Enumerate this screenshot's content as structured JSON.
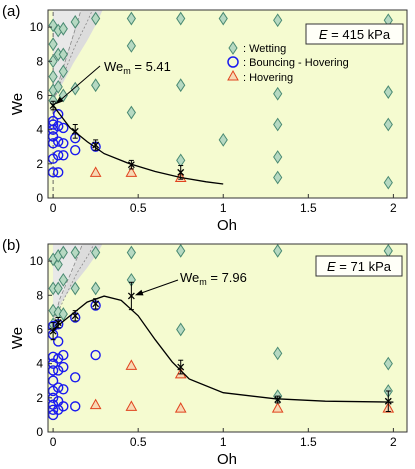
{
  "chart_data": [
    {
      "type": "scatter",
      "panel_label": "(a)",
      "xlabel": "Oh",
      "ylabel": "We",
      "xlim": [
        -0.03,
        2.08
      ],
      "ylim": [
        0,
        11
      ],
      "xticks": [
        0,
        0.5,
        1,
        1.5,
        2
      ],
      "xtick_labels": [
        "0",
        "0.5",
        "1",
        "1.5",
        "2"
      ],
      "yticks": [
        0,
        2,
        4,
        6,
        8,
        10
      ],
      "ytick_labels": [
        "0",
        "2",
        "4",
        "6",
        "8",
        "10"
      ],
      "box_label": "E = 415 kPa",
      "box_label_var": "E",
      "box_label_rest": " = 415 kPa",
      "annotation": {
        "text": "Wem = 5.41",
        "text_main": "We",
        "text_sub": "m",
        "text_rest": " = 5.41",
        "x": 0.005,
        "y": 5.41
      },
      "legend": {
        "placement": "top-right",
        "entries": [
          ": Wetting",
          ": Bouncing - Hovering",
          ": Hovering"
        ]
      },
      "series": [
        {
          "name": "Wetting",
          "marker": "diamond",
          "color": "#4a8a72",
          "x": [
            0.0,
            0.0,
            0.0,
            0.0,
            0.0,
            0.0,
            0.03,
            0.03,
            0.03,
            0.06,
            0.06,
            0.06,
            0.06,
            0.13,
            0.13,
            0.25,
            0.25,
            0.46,
            0.46,
            0.46,
            0.75,
            0.75,
            0.75,
            1.0,
            1.0,
            1.32,
            1.32,
            1.32,
            1.32,
            1.32,
            1.97,
            1.97,
            1.97,
            1.97
          ],
          "y": [
            5.7,
            6.3,
            7.1,
            8.0,
            9.0,
            10.1,
            6.5,
            8.4,
            9.8,
            6.0,
            7.4,
            8.4,
            9.9,
            6.4,
            10.3,
            6.6,
            10.5,
            5.0,
            8.9,
            10.5,
            2.2,
            6.6,
            10.5,
            3.4,
            10.5,
            1.2,
            2.4,
            4.3,
            6.1,
            10.4,
            0.9,
            4.3,
            6.2,
            10.4
          ]
        },
        {
          "name": "Bouncing - Hovering",
          "marker": "circle",
          "color": "#1a1aef",
          "x": [
            0.0,
            0.0,
            0.0,
            0.0,
            0.0,
            0.0,
            0.0,
            0.03,
            0.03,
            0.03,
            0.03,
            0.03,
            0.06,
            0.06,
            0.06,
            0.13,
            0.13,
            0.25
          ],
          "y": [
            1.5,
            2.3,
            3.2,
            3.6,
            4.0,
            4.3,
            4.5,
            1.5,
            2.5,
            3.3,
            4.2,
            4.9,
            2.5,
            3.2,
            4.1,
            2.8,
            3.5,
            3.0
          ]
        },
        {
          "name": "Hovering",
          "marker": "triangle",
          "color": "#e0431e",
          "x": [
            0.25,
            0.46,
            0.75
          ],
          "y": [
            1.5,
            1.5,
            1.2
          ]
        }
      ],
      "threshold_points": {
        "x": [
          0.0,
          0.13,
          0.25,
          0.46,
          0.75
        ],
        "y": [
          5.41,
          3.9,
          3.1,
          1.95,
          1.5
        ],
        "err": [
          0.25,
          0.4,
          0.3,
          0.25,
          0.4
        ]
      },
      "fit_curve": {
        "x": [
          0.0,
          0.1,
          0.2,
          0.3,
          0.45,
          0.6,
          0.75,
          0.9,
          1.0
        ],
        "y": [
          5.41,
          4.1,
          3.3,
          2.6,
          2.0,
          1.55,
          1.2,
          0.95,
          0.82
        ]
      }
    },
    {
      "type": "scatter",
      "panel_label": "(b)",
      "xlabel": "Oh",
      "ylabel": "We",
      "xlim": [
        -0.03,
        2.08
      ],
      "ylim": [
        0,
        11
      ],
      "xticks": [
        0,
        0.5,
        1,
        1.5,
        2
      ],
      "xtick_labels": [
        "0",
        "0.5",
        "1",
        "1.5",
        "2"
      ],
      "yticks": [
        0,
        2,
        4,
        6,
        8,
        10
      ],
      "ytick_labels": [
        "0",
        "2",
        "4",
        "6",
        "8",
        "10"
      ],
      "box_label": "E = 71 kPa",
      "box_label_var": "E",
      "box_label_rest": " = 71 kPa",
      "annotation": {
        "text": "Wem = 7.96",
        "text_main": "We",
        "text_sub": "m",
        "text_rest": " = 7.96",
        "x": 0.47,
        "y": 7.96
      },
      "series": [
        {
          "name": "Wetting",
          "marker": "diamond",
          "color": "#4a8a72",
          "x": [
            0.0,
            0.0,
            0.0,
            0.0,
            0.03,
            0.03,
            0.03,
            0.03,
            0.06,
            0.06,
            0.06,
            0.13,
            0.13,
            0.25,
            0.25,
            0.46,
            0.46,
            0.75,
            0.75,
            1.32,
            1.32,
            1.32,
            1.97,
            1.97,
            1.97
          ],
          "y": [
            6.3,
            7.1,
            8.4,
            10.1,
            7.0,
            8.4,
            9.8,
            10.3,
            6.9,
            8.9,
            10.5,
            8.4,
            10.5,
            8.4,
            10.5,
            8.9,
            10.5,
            6.0,
            10.6,
            2.1,
            4.6,
            10.6,
            2.4,
            4.0,
            10.6
          ]
        },
        {
          "name": "Bouncing - Hovering",
          "marker": "circle",
          "color": "#1a1aef",
          "x": [
            0.0,
            0.0,
            0.0,
            0.0,
            0.0,
            0.0,
            0.0,
            0.0,
            0.0,
            0.0,
            0.0,
            0.03,
            0.03,
            0.03,
            0.03,
            0.03,
            0.03,
            0.03,
            0.06,
            0.06,
            0.06,
            0.06,
            0.13,
            0.13,
            0.13,
            0.25,
            0.25
          ],
          "y": [
            1.0,
            1.3,
            1.6,
            2.0,
            2.4,
            3.0,
            3.6,
            4.0,
            4.4,
            5.7,
            6.2,
            1.3,
            1.8,
            2.6,
            3.6,
            4.3,
            5.3,
            6.3,
            1.5,
            2.5,
            3.8,
            4.5,
            1.5,
            3.2,
            6.7,
            4.5,
            7.4
          ]
        },
        {
          "name": "Hovering",
          "marker": "triangle",
          "color": "#e0431e",
          "x": [
            0.25,
            0.46,
            0.46,
            0.75,
            0.75,
            1.32,
            1.97
          ],
          "y": [
            1.6,
            3.9,
            1.5,
            3.4,
            1.4,
            1.4,
            1.4
          ]
        }
      ],
      "threshold_points": {
        "x": [
          0.0,
          0.03,
          0.13,
          0.25,
          0.46,
          0.75,
          1.32,
          1.97
        ],
        "y": [
          5.9,
          6.4,
          6.8,
          7.5,
          7.96,
          3.8,
          1.9,
          1.8
        ],
        "err": [
          0.5,
          0.3,
          0.3,
          0.3,
          0.8,
          0.4,
          0.2,
          0.6
        ]
      },
      "fit_curve": {
        "x": [
          0.0,
          0.1,
          0.2,
          0.3,
          0.4,
          0.5,
          0.6,
          0.7,
          0.8,
          1.0,
          1.3,
          1.6,
          2.0
        ],
        "y": [
          6.0,
          6.8,
          7.6,
          7.95,
          7.7,
          6.8,
          5.4,
          4.1,
          3.1,
          2.3,
          1.95,
          1.8,
          1.75
        ]
      }
    }
  ],
  "colors": {
    "plot_background": "#f5fbd0",
    "shaded_region": "#dcdcdc",
    "fit_line": "#000000",
    "threshold_marker": "#000000"
  }
}
